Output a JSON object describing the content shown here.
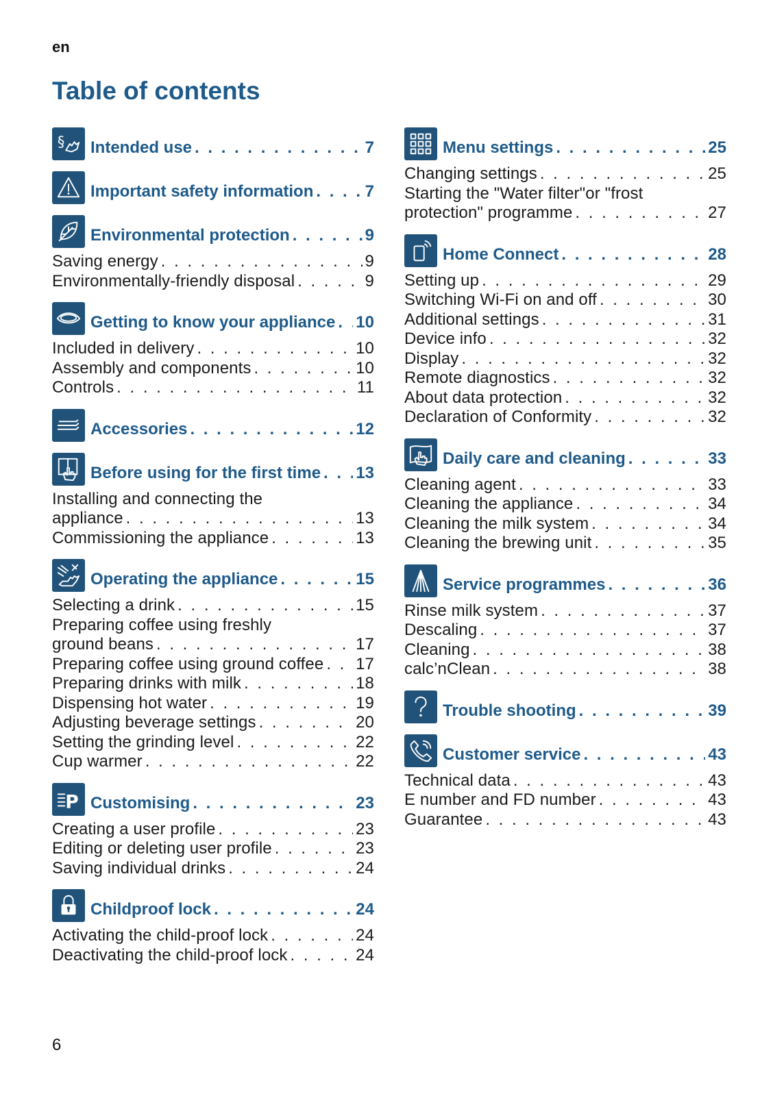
{
  "lang": "en",
  "title": "Table of contents",
  "page_number": "6",
  "dots": ". . . . . . . . . . . . . . . . . . . . . . . . . . . . . . . . . . . . . . . . . . . . . . . . . . . . . . . . . . .",
  "left_sections": [
    {
      "icon": "intended-use-icon",
      "title": "Intended use",
      "page": "7",
      "entries": []
    },
    {
      "icon": "warning-triangle-icon",
      "title": "Important safety information",
      "page": "7",
      "entries": []
    },
    {
      "icon": "leaf-icon",
      "title": "Environmental protection",
      "page": "9",
      "entries": [
        {
          "label": "Saving energy",
          "page": "9"
        },
        {
          "label": "Environmentally-friendly disposal",
          "page": "9"
        }
      ]
    },
    {
      "icon": "eye-icon",
      "title": "Getting to know your appliance",
      "page": "10",
      "entries": [
        {
          "label": "Included in delivery",
          "page": "10"
        },
        {
          "label": "Assembly and components",
          "page": "10"
        },
        {
          "label": "Controls",
          "page": "11"
        }
      ]
    },
    {
      "icon": "accessories-icon",
      "title": "Accessories",
      "page": "12",
      "entries": []
    },
    {
      "icon": "first-use-hand-icon",
      "title": "Before using for the first time",
      "page": "13",
      "entries": [
        {
          "label": "Installing and connecting the",
          "label2": "appliance",
          "page": "13"
        },
        {
          "label": "Commissioning the appliance",
          "page": "13"
        }
      ]
    },
    {
      "icon": "operating-hand-icon",
      "title": "Operating the appliance",
      "page": "15",
      "entries": [
        {
          "label": "Selecting a drink",
          "page": "15"
        },
        {
          "label": "Preparing coffee using freshly",
          "label2": "ground beans",
          "page": "17"
        },
        {
          "label": "Preparing coffee using ground coffee",
          "page": "17"
        },
        {
          "label": "Preparing drinks with milk",
          "page": "18"
        },
        {
          "label": "Dispensing hot water",
          "page": "19"
        },
        {
          "label": "Adjusting beverage settings",
          "page": "20"
        },
        {
          "label": "Setting the grinding level",
          "page": "22"
        },
        {
          "label": "Cup warmer",
          "page": "22"
        }
      ]
    },
    {
      "icon": "customising-p-icon",
      "title": "Customising",
      "page": "23",
      "entries": [
        {
          "label": "Creating a user profile",
          "page": "23"
        },
        {
          "label": "Editing or deleting user profile",
          "page": "23"
        },
        {
          "label": "Saving individual drinks",
          "page": "24"
        }
      ]
    },
    {
      "icon": "lock-icon",
      "title": "Childproof lock",
      "page": "24",
      "entries": [
        {
          "label": "Activating the child-proof lock",
          "page": "24"
        },
        {
          "label": "Deactivating the child-proof lock",
          "page": "24"
        }
      ]
    }
  ],
  "right_sections": [
    {
      "icon": "menu-grid-icon",
      "title": "Menu settings",
      "page": "25",
      "entries": [
        {
          "label": "Changing settings",
          "page": "25"
        },
        {
          "label": "Starting the \"Water filter\"or \"frost",
          "label2": "protection\" programme",
          "page": "27"
        }
      ]
    },
    {
      "icon": "home-connect-icon",
      "title": "Home Connect",
      "page": "28",
      "entries": [
        {
          "label": "Setting up",
          "page": "29"
        },
        {
          "label": "Switching Wi-Fi on and off",
          "page": "30"
        },
        {
          "label": "Additional settings",
          "page": "31"
        },
        {
          "label": "Device info",
          "page": "32"
        },
        {
          "label": "Display",
          "page": "32"
        },
        {
          "label": "Remote diagnostics",
          "page": "32"
        },
        {
          "label": "About data protection",
          "page": "32"
        },
        {
          "label": "Declaration of Conformity",
          "page": "32"
        }
      ]
    },
    {
      "icon": "cleaning-cloth-icon",
      "title": "Daily care and cleaning",
      "page": "33",
      "entries": [
        {
          "label": "Cleaning agent",
          "page": "33"
        },
        {
          "label": "Cleaning the appliance",
          "page": "34"
        },
        {
          "label": "Cleaning the milk system",
          "page": "34"
        },
        {
          "label": "Cleaning the brewing unit",
          "page": "35"
        }
      ]
    },
    {
      "icon": "service-programme-icon",
      "title": "Service programmes",
      "page": "36",
      "entries": [
        {
          "label": "Rinse milk system",
          "page": "37"
        },
        {
          "label": "Descaling",
          "page": "37"
        },
        {
          "label": "Cleaning",
          "page": "38"
        },
        {
          "label": "calc’nClean",
          "page": "38"
        }
      ]
    },
    {
      "icon": "question-mark-icon",
      "title": "Trouble shooting",
      "page": "39",
      "entries": []
    },
    {
      "icon": "phone-icon",
      "title": "Customer service",
      "page": "43",
      "entries": [
        {
          "label": "Technical data",
          "page": "43"
        },
        {
          "label": "E number and FD number",
          "page": "43"
        },
        {
          "label": "Guarantee",
          "page": "43"
        }
      ]
    }
  ]
}
